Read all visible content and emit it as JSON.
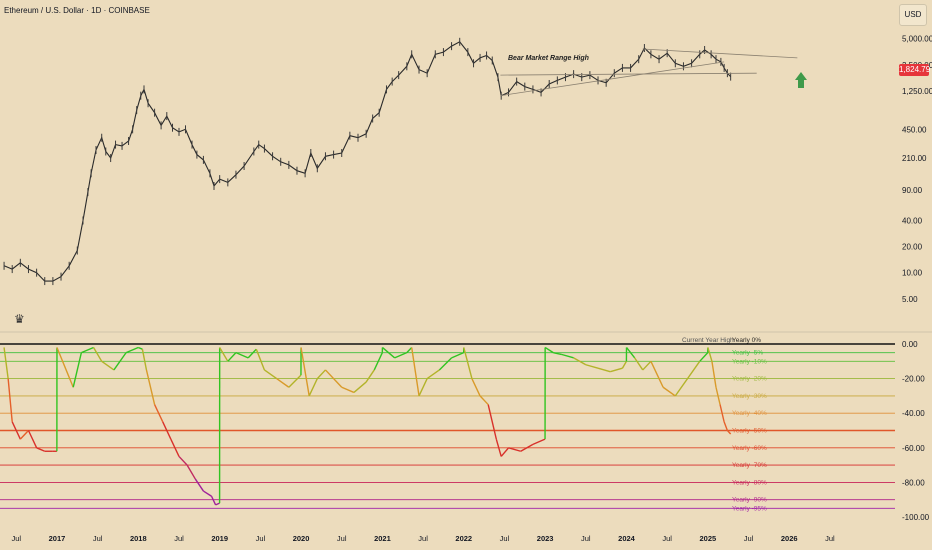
{
  "header": {
    "title": "Ethereum / U.S. Dollar · 1D · COINBASE",
    "currency_button": "USD"
  },
  "price_badge": "1,824.79",
  "annotation": "Bear Market Range High",
  "icons": {
    "logo": "tradingview-logo-icon",
    "arrow": "up-arrow-icon"
  },
  "chart_data": [
    {
      "type": "line",
      "scale": "log",
      "ylim": [
        3,
        7000
      ],
      "xlim": [
        2016.3,
        2027.3
      ],
      "y_ticks": [
        5,
        10,
        20,
        40,
        90,
        210,
        450,
        1250,
        2500,
        5000
      ],
      "y_tick_labels": [
        "5.00",
        "10.00",
        "20.00",
        "40.00",
        "90.00",
        "210.00",
        "450.00",
        "1,250.00",
        "2,500.00",
        "5,000.00"
      ],
      "series": [
        {
          "x": [
            2016.35,
            2016.45,
            2016.55,
            2016.65,
            2016.75,
            2016.85,
            2016.95,
            2017.05,
            2017.15,
            2017.25,
            2017.32,
            2017.38,
            2017.42,
            2017.48,
            2017.55,
            2017.6,
            2017.66,
            2017.72,
            2017.8,
            2017.88,
            2017.93,
            2017.98,
            2018.03,
            2018.07,
            2018.12,
            2018.2,
            2018.28,
            2018.35,
            2018.42,
            2018.5,
            2018.58,
            2018.66,
            2018.72,
            2018.8,
            2018.88,
            2018.93,
            2019.0,
            2019.1,
            2019.2,
            2019.3,
            2019.42,
            2019.48,
            2019.55,
            2019.65,
            2019.75,
            2019.85,
            2019.95,
            2020.05,
            2020.12,
            2020.2,
            2020.3,
            2020.4,
            2020.5,
            2020.6,
            2020.7,
            2020.8,
            2020.88,
            2020.96,
            2021.05,
            2021.12,
            2021.2,
            2021.3,
            2021.36,
            2021.45,
            2021.55,
            2021.65,
            2021.75,
            2021.85,
            2021.95,
            2022.05,
            2022.12,
            2022.2,
            2022.28,
            2022.35,
            2022.42,
            2022.46,
            2022.55,
            2022.65,
            2022.75,
            2022.85,
            2022.95,
            2023.05,
            2023.15,
            2023.25,
            2023.35,
            2023.45,
            2023.55,
            2023.65,
            2023.75,
            2023.85,
            2023.95,
            2024.05,
            2024.15,
            2024.22,
            2024.3,
            2024.4,
            2024.5,
            2024.6,
            2024.7,
            2024.8,
            2024.9,
            2024.96,
            2025.04,
            2025.1,
            2025.16,
            2025.2,
            2025.24,
            2025.28
          ],
          "values": [
            12,
            11,
            13,
            11,
            10,
            8,
            8,
            9,
            12,
            18,
            40,
            85,
            140,
            260,
            360,
            250,
            210,
            300,
            290,
            330,
            450,
            750,
            1100,
            1300,
            900,
            700,
            500,
            640,
            470,
            420,
            450,
            300,
            230,
            200,
            140,
            100,
            120,
            110,
            135,
            170,
            250,
            300,
            270,
            220,
            190,
            175,
            150,
            140,
            240,
            160,
            220,
            230,
            240,
            380,
            360,
            400,
            600,
            700,
            1300,
            1600,
            1900,
            2400,
            3300,
            2200,
            2000,
            3300,
            3500,
            4100,
            4600,
            3500,
            2600,
            3000,
            3200,
            2800,
            1800,
            1100,
            1200,
            1600,
            1400,
            1300,
            1200,
            1500,
            1650,
            1800,
            1950,
            1800,
            1900,
            1650,
            1550,
            2000,
            2300,
            2300,
            2900,
            3900,
            3300,
            2900,
            3400,
            2600,
            2400,
            2600,
            3300,
            3700,
            3300,
            2900,
            2700,
            2300,
            2000,
            1825
          ]
        }
      ]
    },
    {
      "type": "line",
      "ylim": [
        -100,
        0
      ],
      "xlim": [
        2016.3,
        2027.3
      ],
      "x_tick_labels": [
        "Jul",
        "2017",
        "Jul",
        "2018",
        "Jul",
        "2019",
        "Jul",
        "2020",
        "Jul",
        "2021",
        "Jul",
        "2022",
        "Jul",
        "2023",
        "Jul",
        "2024",
        "Jul",
        "2025",
        "Jul",
        "2026",
        "Jul"
      ],
      "x_tick_positions": [
        2016.5,
        2017.0,
        2017.5,
        2018.0,
        2018.5,
        2019.0,
        2019.5,
        2020.0,
        2020.5,
        2021.0,
        2021.5,
        2022.0,
        2022.5,
        2023.0,
        2023.5,
        2024.0,
        2024.5,
        2025.0,
        2025.5,
        2026.0,
        2026.5
      ],
      "y_ticks": [
        0,
        -20,
        -40,
        -60,
        -80,
        -100
      ],
      "y_tick_labels": [
        "0.00",
        "-20.00",
        "-40.00",
        "-60.00",
        "-80.00",
        "-100.00"
      ],
      "levels": [
        {
          "value": 0,
          "label": "Yearly 0%",
          "color": "#111111"
        },
        {
          "value": -5,
          "label": "Yearly -5%",
          "color": "#3cbf3c"
        },
        {
          "value": -10,
          "label": "Yearly -10%",
          "color": "#5fbf3c"
        },
        {
          "value": -20,
          "label": "Yearly -20%",
          "color": "#9bb83a"
        },
        {
          "value": -30,
          "label": "Yearly -30%",
          "color": "#c9a83a"
        },
        {
          "value": -40,
          "label": "Yearly -40%",
          "color": "#e0903a"
        },
        {
          "value": -50,
          "label": "Yearly -50%",
          "color": "#e0562a"
        },
        {
          "value": -60,
          "label": "Yearly -60%",
          "color": "#e0452a"
        },
        {
          "value": -70,
          "label": "Yearly -70%",
          "color": "#d62a2a"
        },
        {
          "value": -80,
          "label": "Yearly -80%",
          "color": "#c8245a"
        },
        {
          "value": -90,
          "label": "Yearly -90%",
          "color": "#b0208a"
        },
        {
          "value": -95,
          "label": "Yearly -95%",
          "color": "#a020a8"
        }
      ],
      "header_label": "Current Year High",
      "resets": [
        2017.0,
        2018.0,
        2019.0,
        2020.0,
        2021.0,
        2022.0,
        2023.0,
        2024.0,
        2025.0
      ],
      "series": [
        {
          "x": [
            2016.35,
            2016.4,
            2016.45,
            2016.55,
            2016.65,
            2016.75,
            2016.85,
            2016.95,
            2016.999,
            2017.0,
            2017.2,
            2017.3,
            2017.45,
            2017.55,
            2017.7,
            2017.85,
            2017.999,
            2018.0,
            2018.05,
            2018.1,
            2018.2,
            2018.3,
            2018.4,
            2018.5,
            2018.6,
            2018.7,
            2018.8,
            2018.9,
            2018.95,
            2018.999,
            2019.0,
            2019.1,
            2019.2,
            2019.35,
            2019.45,
            2019.55,
            2019.7,
            2019.85,
            2019.999,
            2020.0,
            2020.1,
            2020.2,
            2020.3,
            2020.5,
            2020.65,
            2020.8,
            2020.9,
            2020.999,
            2021.0,
            2021.15,
            2021.3,
            2021.36,
            2021.45,
            2021.55,
            2021.7,
            2021.85,
            2021.999,
            2022.0,
            2022.1,
            2022.2,
            2022.3,
            2022.4,
            2022.46,
            2022.55,
            2022.7,
            2022.85,
            2022.999,
            2023.0,
            2023.1,
            2023.2,
            2023.35,
            2023.5,
            2023.65,
            2023.8,
            2023.95,
            2023.999,
            2024.0,
            2024.1,
            2024.2,
            2024.3,
            2024.45,
            2024.6,
            2024.75,
            2024.9,
            2024.999,
            2025.0,
            2025.05,
            2025.1,
            2025.15,
            2025.2,
            2025.24,
            2025.28
          ],
          "values": [
            -2,
            -20,
            -45,
            -55,
            -50,
            -60,
            -62,
            -62,
            -62,
            -2,
            -25,
            -5,
            -2,
            -10,
            -15,
            -5,
            -2,
            -2,
            -3,
            -15,
            -35,
            -45,
            -55,
            -65,
            -70,
            -78,
            -85,
            -88,
            -93,
            -92,
            -2,
            -10,
            -5,
            -8,
            -3,
            -15,
            -20,
            -25,
            -18,
            -2,
            -30,
            -20,
            -15,
            -25,
            -28,
            -22,
            -15,
            -5,
            -2,
            -8,
            -5,
            -2,
            -30,
            -20,
            -15,
            -8,
            -5,
            -2,
            -20,
            -30,
            -35,
            -55,
            -65,
            -60,
            -62,
            -58,
            -55,
            -2,
            -5,
            -6,
            -8,
            -12,
            -14,
            -16,
            -14,
            -10,
            -2,
            -8,
            -15,
            -10,
            -25,
            -30,
            -20,
            -10,
            -5,
            -2,
            -10,
            -25,
            -35,
            -45,
            -50,
            -52
          ]
        }
      ]
    }
  ]
}
